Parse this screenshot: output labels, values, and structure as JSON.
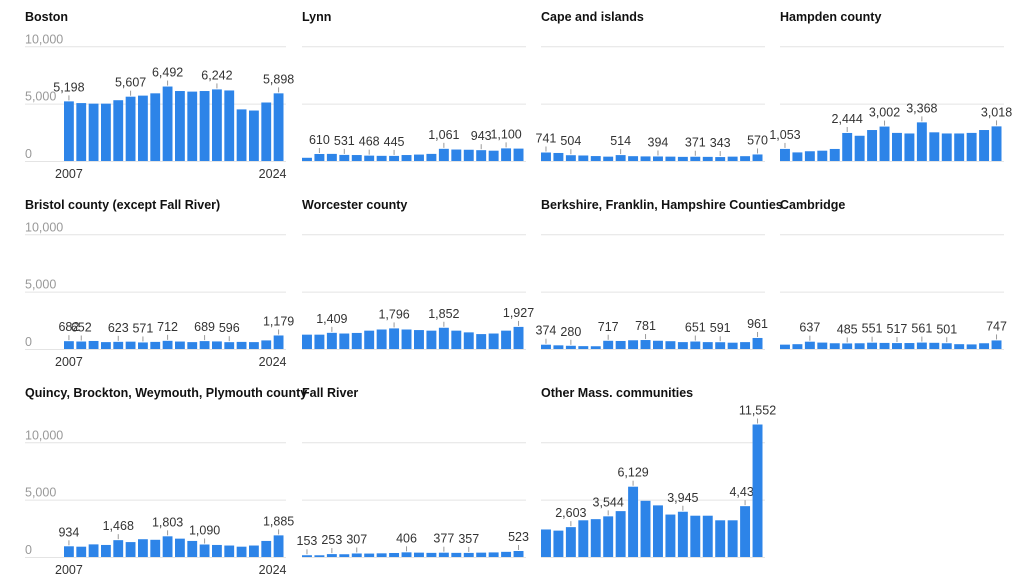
{
  "chart_data": [
    {
      "type": "bar",
      "title": "Boston",
      "categories": [
        "2007",
        "2008",
        "2009",
        "2010",
        "2011",
        "2012",
        "2013",
        "2014",
        "2015",
        "2016",
        "2017",
        "2018",
        "2019",
        "2020",
        "2021",
        "2022",
        "2023",
        "2024"
      ],
      "values": [
        5198,
        5050,
        5000,
        5000,
        5300,
        5607,
        5700,
        5900,
        6492,
        6100,
        6050,
        6100,
        6242,
        6150,
        4500,
        4400,
        5100,
        5898
      ],
      "labels": [
        "5,198",
        null,
        null,
        null,
        null,
        "5,607",
        null,
        null,
        "6,492",
        null,
        null,
        null,
        "6,242",
        null,
        null,
        null,
        null,
        "5,898"
      ],
      "yticks": [
        "10,000",
        "5,000",
        "0"
      ],
      "ytick_values": [
        10000,
        5000,
        0
      ],
      "xticks": [
        "2007",
        "2024"
      ],
      "ylim": [
        0,
        10000
      ],
      "color": "#2d84e8"
    },
    {
      "type": "bar",
      "title": "Lynn",
      "categories": [
        "2007",
        "2008",
        "2009",
        "2010",
        "2011",
        "2012",
        "2013",
        "2014",
        "2015",
        "2016",
        "2017",
        "2018",
        "2019",
        "2020",
        "2021",
        "2022",
        "2023",
        "2024"
      ],
      "values": [
        280,
        610,
        620,
        531,
        520,
        468,
        450,
        445,
        520,
        560,
        620,
        1061,
        1000,
        980,
        943,
        900,
        1100,
        1080
      ],
      "labels": [
        null,
        "610",
        null,
        "531",
        null,
        "468",
        null,
        "445",
        null,
        null,
        null,
        "1,061",
        null,
        null,
        "943",
        null,
        "1,100",
        null
      ],
      "yticks": [],
      "ytick_values": [
        10000,
        5000,
        0
      ],
      "xticks": [],
      "ylim": [
        0,
        10000
      ],
      "color": "#2d84e8"
    },
    {
      "type": "bar",
      "title": "Cape and islands",
      "categories": [
        "2007",
        "2008",
        "2009",
        "2010",
        "2011",
        "2012",
        "2013",
        "2014",
        "2015",
        "2016",
        "2017",
        "2018",
        "2019",
        "2020",
        "2021",
        "2022",
        "2023",
        "2024"
      ],
      "values": [
        741,
        700,
        504,
        480,
        430,
        380,
        514,
        420,
        400,
        394,
        380,
        360,
        371,
        360,
        343,
        380,
        420,
        570
      ],
      "labels": [
        "741",
        null,
        "504",
        null,
        null,
        null,
        "514",
        null,
        null,
        "394",
        null,
        null,
        "371",
        null,
        "343",
        null,
        null,
        "570"
      ],
      "yticks": [],
      "ytick_values": [
        10000,
        5000,
        0
      ],
      "xticks": [],
      "ylim": [
        0,
        10000
      ],
      "color": "#2d84e8"
    },
    {
      "type": "bar",
      "title": "Hampden county",
      "categories": [
        "2007",
        "2008",
        "2009",
        "2010",
        "2011",
        "2012",
        "2013",
        "2014",
        "2015",
        "2016",
        "2017",
        "2018",
        "2019",
        "2020",
        "2021",
        "2022",
        "2023",
        "2024"
      ],
      "values": [
        1053,
        750,
        850,
        900,
        1050,
        2444,
        2200,
        2700,
        3002,
        2450,
        2400,
        3368,
        2500,
        2400,
        2400,
        2450,
        2700,
        3018
      ],
      "labels": [
        "1,053",
        null,
        null,
        null,
        null,
        "2,444",
        null,
        null,
        "3,002",
        null,
        null,
        "3,368",
        null,
        null,
        null,
        null,
        null,
        "3,018"
      ],
      "yticks": [],
      "ytick_values": [
        10000,
        5000,
        0
      ],
      "xticks": [],
      "ylim": [
        0,
        10000
      ],
      "color": "#2d84e8"
    },
    {
      "type": "bar",
      "title": "Bristol county (except Fall River)",
      "categories": [
        "2007",
        "2008",
        "2009",
        "2010",
        "2011",
        "2012",
        "2013",
        "2014",
        "2015",
        "2016",
        "2017",
        "2018",
        "2019",
        "2020",
        "2021",
        "2022",
        "2023",
        "2024"
      ],
      "values": [
        682,
        652,
        700,
        600,
        623,
        640,
        571,
        620,
        712,
        650,
        600,
        689,
        660,
        596,
        620,
        600,
        750,
        1179
      ],
      "labels": [
        "682",
        "652",
        null,
        null,
        "623",
        null,
        "571",
        null,
        "712",
        null,
        null,
        "689",
        null,
        "596",
        null,
        null,
        null,
        "1,179"
      ],
      "yticks": [
        "10,000",
        "5,000",
        "0"
      ],
      "ytick_values": [
        10000,
        5000,
        0
      ],
      "xticks": [
        "2007",
        "2024"
      ],
      "ylim": [
        0,
        10000
      ],
      "color": "#2d84e8"
    },
    {
      "type": "bar",
      "title": "Worcester county",
      "categories": [
        "2007",
        "2008",
        "2009",
        "2010",
        "2011",
        "2012",
        "2013",
        "2014",
        "2015",
        "2016",
        "2017",
        "2018",
        "2019",
        "2020",
        "2021",
        "2022",
        "2023",
        "2024"
      ],
      "values": [
        1250,
        1250,
        1409,
        1350,
        1400,
        1600,
        1700,
        1796,
        1700,
        1650,
        1600,
        1852,
        1600,
        1450,
        1300,
        1350,
        1600,
        1927
      ],
      "labels": [
        null,
        null,
        "1,409",
        null,
        null,
        null,
        null,
        "1,796",
        null,
        null,
        null,
        "1,852",
        null,
        null,
        null,
        null,
        null,
        "1,927"
      ],
      "yticks": [],
      "ytick_values": [
        10000,
        5000,
        0
      ],
      "xticks": [],
      "ylim": [
        0,
        10000
      ],
      "color": "#2d84e8"
    },
    {
      "type": "bar",
      "title": "Berkshire, Franklin, Hampshire Counties",
      "categories": [
        "2007",
        "2008",
        "2009",
        "2010",
        "2011",
        "2012",
        "2013",
        "2014",
        "2015",
        "2016",
        "2017",
        "2018",
        "2019",
        "2020",
        "2021",
        "2022",
        "2023",
        "2024"
      ],
      "values": [
        374,
        320,
        280,
        250,
        240,
        717,
        700,
        760,
        781,
        720,
        680,
        600,
        651,
        600,
        591,
        550,
        600,
        961
      ],
      "labels": [
        "374",
        null,
        "280",
        null,
        null,
        "717",
        null,
        null,
        "781",
        null,
        null,
        null,
        "651",
        null,
        "591",
        null,
        null,
        "961"
      ],
      "yticks": [],
      "ytick_values": [
        10000,
        5000,
        0
      ],
      "xticks": [],
      "ylim": [
        0,
        10000
      ],
      "color": "#2d84e8"
    },
    {
      "type": "bar",
      "title": "Cambridge",
      "categories": [
        "2007",
        "2008",
        "2009",
        "2010",
        "2011",
        "2012",
        "2013",
        "2014",
        "2015",
        "2016",
        "2017",
        "2018",
        "2019",
        "2020",
        "2021",
        "2022",
        "2023",
        "2024"
      ],
      "values": [
        380,
        420,
        637,
        560,
        500,
        485,
        500,
        551,
        530,
        517,
        520,
        561,
        540,
        501,
        420,
        400,
        500,
        747
      ],
      "labels": [
        null,
        null,
        "637",
        null,
        null,
        "485",
        null,
        "551",
        null,
        "517",
        null,
        "561",
        null,
        "501",
        null,
        null,
        null,
        "747"
      ],
      "yticks": [],
      "ytick_values": [
        10000,
        5000,
        0
      ],
      "xticks": [],
      "ylim": [
        0,
        10000
      ],
      "color": "#2d84e8"
    },
    {
      "type": "bar",
      "title": "Quincy, Brockton, Weymouth, Plymouth county",
      "categories": [
        "2007",
        "2008",
        "2009",
        "2010",
        "2011",
        "2012",
        "2013",
        "2014",
        "2015",
        "2016",
        "2017",
        "2018",
        "2019",
        "2020",
        "2021",
        "2022",
        "2023",
        "2024"
      ],
      "values": [
        934,
        900,
        1100,
        1050,
        1468,
        1300,
        1550,
        1500,
        1803,
        1600,
        1400,
        1090,
        1050,
        1000,
        900,
        1000,
        1400,
        1885
      ],
      "labels": [
        "934",
        null,
        null,
        null,
        "1,468",
        null,
        null,
        null,
        "1,803",
        null,
        null,
        "1,090",
        null,
        null,
        null,
        null,
        null,
        "1,885"
      ],
      "yticks": [
        "10,000",
        "5,000",
        "0"
      ],
      "ytick_values": [
        10000,
        5000,
        0
      ],
      "xticks": [
        "2007",
        "2024"
      ],
      "ylim": [
        0,
        10000
      ],
      "color": "#2d84e8"
    },
    {
      "type": "bar",
      "title": "Fall River",
      "categories": [
        "2007",
        "2008",
        "2009",
        "2010",
        "2011",
        "2012",
        "2013",
        "2014",
        "2015",
        "2016",
        "2017",
        "2018",
        "2019",
        "2020",
        "2021",
        "2022",
        "2023",
        "2024"
      ],
      "values": [
        153,
        150,
        253,
        240,
        307,
        300,
        320,
        350,
        406,
        380,
        360,
        377,
        360,
        357,
        380,
        400,
        450,
        523
      ],
      "labels": [
        "153",
        null,
        "253",
        null,
        "307",
        null,
        null,
        null,
        "406",
        null,
        null,
        "377",
        null,
        "357",
        null,
        null,
        null,
        "523"
      ],
      "yticks": [],
      "ytick_values": [
        10000,
        5000,
        0
      ],
      "xticks": [],
      "ylim": [
        0,
        10000
      ],
      "color": "#2d84e8"
    },
    {
      "type": "bar",
      "title": "Other Mass. communities",
      "categories": [
        "2007",
        "2008",
        "2009",
        "2010",
        "2011",
        "2012",
        "2013",
        "2014",
        "2015",
        "2016",
        "2017",
        "2018",
        "2019",
        "2020",
        "2021",
        "2022",
        "2023",
        "2024"
      ],
      "values": [
        2400,
        2300,
        2603,
        3200,
        3300,
        3544,
        4000,
        6129,
        4900,
        4500,
        3700,
        3945,
        3600,
        3600,
        3200,
        3200,
        4432,
        11552
      ],
      "labels": [
        null,
        null,
        "2,603",
        null,
        null,
        "3,544",
        null,
        "6,129",
        null,
        null,
        null,
        "3,945",
        null,
        null,
        null,
        null,
        "4,432",
        "11,552"
      ],
      "yticks": [],
      "ytick_values": [
        10000,
        5000,
        0
      ],
      "xticks": [],
      "ylim": [
        0,
        10000
      ],
      "color": "#2d84e8"
    }
  ]
}
